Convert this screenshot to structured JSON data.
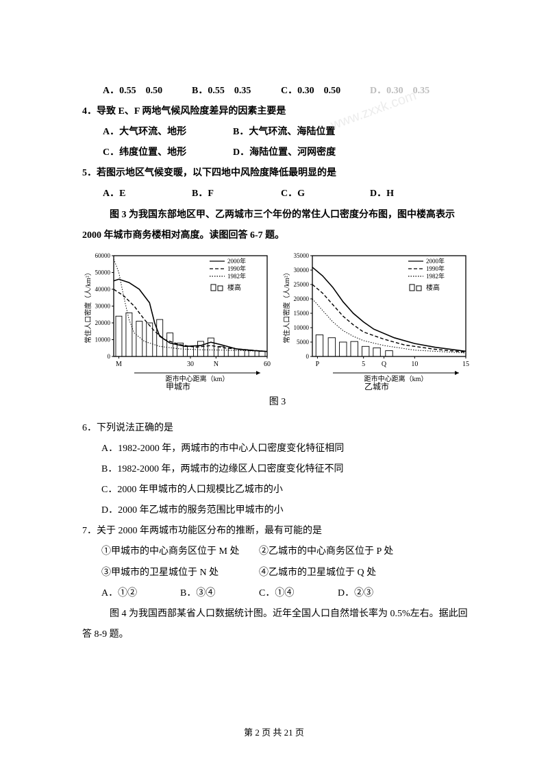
{
  "q3_options": {
    "a": "A．0.55　0.50",
    "b": "B．0.55　0.35",
    "c": "C．0.30　0.50",
    "d": "D．0.30　0.35"
  },
  "q4": {
    "stem": "4．导致 E、F 两地气候风险度差异的因素主要是",
    "a": "A．大气环流、地形",
    "b": "B．大气环流、海陆位置",
    "c": "C．纬度位置、地形",
    "d": "D．海陆位置、河网密度"
  },
  "q5": {
    "stem": "5．若图示地区气候变暖，以下四地中风险度降低最明显的是",
    "a": "A．E",
    "b": "B．F",
    "c": "C．G",
    "d": "D．H"
  },
  "intro67": "图 3 为我国东部地区甲、乙两城市三个年份的常住人口密度分布图，图中楼高表示 2000 年城市商务楼相对高度。读图回答 6-7 题。",
  "figure3_caption": "图 3",
  "q6": {
    "stem": "6．下列说法正确的是",
    "a": "A．1982-2000 年，两城市的市中心人口密度变化特征相同",
    "b": "B．1982-2000 年，两城市的边缘区人口密度变化特征不同",
    "c": "C．2000 年甲城市的人口规模比乙城市的小",
    "d": "D．2000 年乙城市的服务范围比甲城市的小"
  },
  "q7": {
    "stem": "7．关于 2000 年两城市功能区分布的推断，最有可能的是",
    "s1": "①甲城市的中心商务区位于 M 处",
    "s2": "②乙城市的中心商务区位于 P 处",
    "s3": "③甲城市的卫星城位于 N 处",
    "s4": "④乙城市的卫星城位于 Q 处",
    "a": "A．①②",
    "b": "B．③④",
    "c": "C．①④",
    "d": "D．②③"
  },
  "intro89": "图 4 为我国西部某省人口数据统计图。近年全国人口自然增长率为 0.5%左右。据此回答 8-9 题。",
  "footer": "第 2 页 共 21 页",
  "chartA": {
    "title": "甲城市",
    "ylabel": "常住人口密度（人/km²）",
    "xlabel": "距市中心距离（km）",
    "ymax": 60000,
    "ystep": 10000,
    "xticks": [
      "M",
      "",
      "30",
      "N",
      "",
      "60"
    ],
    "legend": [
      "2000年",
      "1990年",
      "1982年",
      "楼高"
    ],
    "colors": {
      "axis": "#000000",
      "text": "#000000",
      "grid": "#000000"
    },
    "line2000": [
      [
        0,
        45000
      ],
      [
        2,
        46000
      ],
      [
        4,
        45000
      ],
      [
        6,
        44000
      ],
      [
        10,
        40000
      ],
      [
        14,
        32000
      ],
      [
        16,
        20000
      ],
      [
        18,
        12000
      ],
      [
        22,
        8000
      ],
      [
        28,
        6000
      ],
      [
        34,
        6500
      ],
      [
        38,
        8500
      ],
      [
        42,
        7000
      ],
      [
        48,
        4500
      ],
      [
        55,
        3500
      ],
      [
        60,
        3000
      ]
    ],
    "line1990": [
      [
        0,
        40000
      ],
      [
        4,
        36000
      ],
      [
        8,
        30000
      ],
      [
        12,
        22000
      ],
      [
        16,
        15000
      ],
      [
        20,
        10000
      ],
      [
        26,
        7000
      ],
      [
        32,
        5500
      ],
      [
        38,
        6500
      ],
      [
        44,
        5000
      ],
      [
        52,
        4000
      ],
      [
        60,
        3000
      ]
    ],
    "line1982": [
      [
        0,
        58000
      ],
      [
        2,
        50000
      ],
      [
        4,
        35000
      ],
      [
        6,
        22000
      ],
      [
        8,
        14000
      ],
      [
        12,
        9000
      ],
      [
        18,
        6000
      ],
      [
        26,
        4500
      ],
      [
        34,
        4000
      ],
      [
        42,
        3800
      ],
      [
        50,
        3500
      ],
      [
        60,
        3000
      ]
    ],
    "bars": [
      [
        2,
        24000
      ],
      [
        6,
        26000
      ],
      [
        10,
        21000
      ],
      [
        14,
        20000
      ],
      [
        18,
        22000
      ],
      [
        22,
        14000
      ],
      [
        26,
        8000
      ],
      [
        30,
        6000
      ],
      [
        34,
        9000
      ],
      [
        38,
        11000
      ],
      [
        42,
        6000
      ],
      [
        46,
        5000
      ],
      [
        50,
        4000
      ],
      [
        54,
        3500
      ],
      [
        58,
        3000
      ]
    ]
  },
  "chartB": {
    "title": "乙城市",
    "ylabel": "常住人口密度（人/km²）",
    "xlabel": "距市中心距离（km）",
    "ymax": 35000,
    "ystep": 5000,
    "xticks": [
      "P",
      "",
      "5",
      "Q",
      "",
      "10",
      "",
      "",
      "15"
    ],
    "legend": [
      "2000年",
      "1990年",
      "1982年",
      "楼高"
    ],
    "line2000": [
      [
        0,
        31000
      ],
      [
        1,
        28000
      ],
      [
        2,
        24000
      ],
      [
        3,
        19000
      ],
      [
        4,
        15000
      ],
      [
        5,
        12000
      ],
      [
        6,
        9500
      ],
      [
        8,
        6500
      ],
      [
        10,
        4500
      ],
      [
        12,
        3200
      ],
      [
        15,
        1800
      ]
    ],
    "line1990": [
      [
        0,
        25000
      ],
      [
        1,
        22000
      ],
      [
        2,
        18000
      ],
      [
        3,
        14000
      ],
      [
        4,
        11000
      ],
      [
        5,
        8500
      ],
      [
        7,
        6000
      ],
      [
        9,
        4000
      ],
      [
        12,
        2500
      ],
      [
        15,
        1500
      ]
    ],
    "line1982": [
      [
        0,
        20000
      ],
      [
        1,
        16000
      ],
      [
        2,
        12000
      ],
      [
        3,
        9000
      ],
      [
        4,
        7000
      ],
      [
        5,
        5500
      ],
      [
        7,
        3800
      ],
      [
        10,
        2200
      ],
      [
        15,
        1200
      ]
    ],
    "bars": [
      [
        0.7,
        7500
      ],
      [
        1.9,
        6500
      ],
      [
        3,
        5000
      ],
      [
        4.1,
        5200
      ],
      [
        5.2,
        3500
      ],
      [
        6.3,
        3000
      ],
      [
        7.5,
        2000
      ]
    ]
  }
}
